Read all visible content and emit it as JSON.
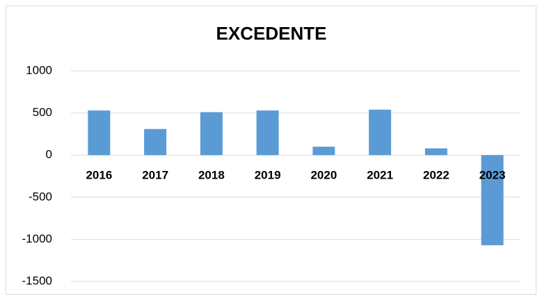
{
  "chart_data": {
    "type": "bar",
    "title": "EXCEDENTE",
    "categories": [
      "2016",
      "2017",
      "2018",
      "2019",
      "2020",
      "2021",
      "2022",
      "2023"
    ],
    "values": [
      530,
      310,
      510,
      530,
      100,
      540,
      80,
      -1070
    ],
    "color": "#5b9bd5",
    "ylim": [
      -1500,
      1000
    ],
    "yticks": [
      -1500,
      -1000,
      -500,
      0,
      500,
      1000
    ],
    "grid": true
  }
}
